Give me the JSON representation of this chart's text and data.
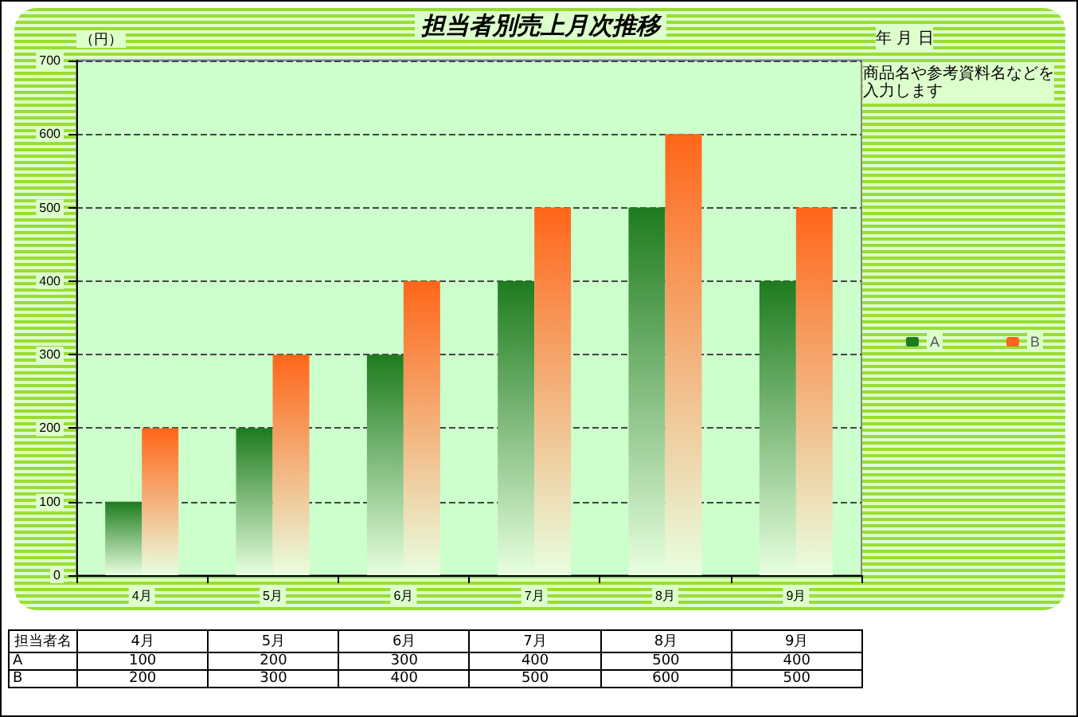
{
  "chart_data": {
    "type": "bar",
    "title": "担当者別売上月次推移",
    "ylabel": "（円）",
    "categories": [
      "4月",
      "5月",
      "6月",
      "7月",
      "8月",
      "9月"
    ],
    "series": [
      {
        "name": "A",
        "color": "#1e7b1e",
        "values": [
          100,
          200,
          300,
          400,
          500,
          400
        ]
      },
      {
        "name": "B",
        "color": "#ff6619",
        "values": [
          200,
          300,
          400,
          500,
          600,
          500
        ]
      }
    ],
    "ylim": [
      0,
      700
    ],
    "yticks": [
      0,
      100,
      200,
      300,
      400,
      500,
      600,
      700
    ],
    "grid": "y",
    "legend": "right",
    "data_labels": true,
    "legend_title": "担当者名",
    "annotations": [
      "年 月 日",
      "商品名や参考資料名などを入力します"
    ]
  }
}
